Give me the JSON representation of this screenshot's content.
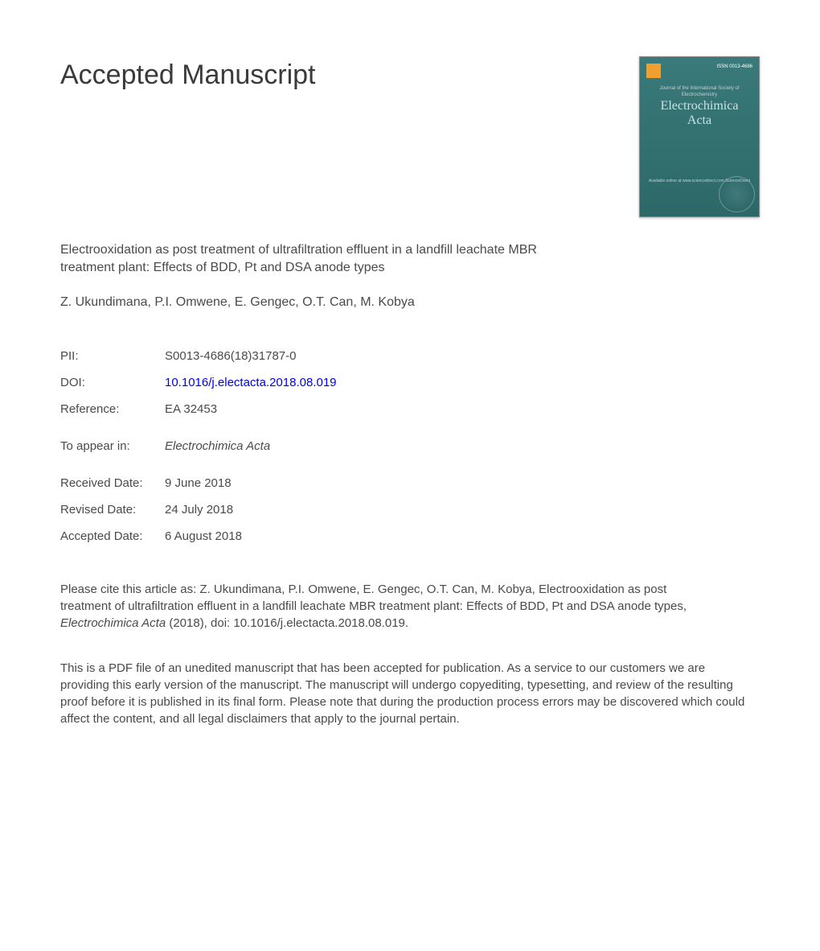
{
  "header": {
    "heading": "Accepted Manuscript"
  },
  "cover": {
    "top_corner": "ISSN 0013-4686",
    "subtitle": "Journal of the International Society of Electrochemistry",
    "journal_name_1": "Electrochimica",
    "journal_name_2": "Acta",
    "bottom_text": "Available online at www.sciencedirect.com\nScienceDirect"
  },
  "article": {
    "title": "Electrooxidation as post treatment of ultrafiltration effluent in a landfill leachate MBR treatment plant: Effects of BDD, Pt and DSA anode types",
    "authors": "Z. Ukundimana, P.I. Omwene, E. Gengec, O.T. Can, M. Kobya"
  },
  "meta": {
    "pii_label": "PII:",
    "pii_value": "S0013-4686(18)31787-0",
    "doi_label": "DOI:",
    "doi_value": "10.1016/j.electacta.2018.08.019",
    "ref_label": "Reference:",
    "ref_value": "EA 32453"
  },
  "appear": {
    "label": "To appear in:",
    "value": "Electrochimica Acta"
  },
  "dates": {
    "received_label": "Received Date:",
    "received_value": "9 June 2018",
    "revised_label": "Revised Date:",
    "revised_value": "24 July 2018",
    "accepted_label": "Accepted Date:",
    "accepted_value": "6 August 2018"
  },
  "citation": {
    "prefix": "Please cite this article as: Z. Ukundimana, P.I. Omwene, E. Gengec, O.T. Can, M. Kobya, Electrooxidation as post treatment of ultrafiltration effluent in a landfill leachate MBR treatment plant: Effects of BDD, Pt and DSA anode types, ",
    "journal": "Electrochimica Acta",
    "suffix": " (2018), doi: 10.1016/j.electacta.2018.08.019."
  },
  "disclaimer": {
    "text": "This is a PDF file of an unedited manuscript that has been accepted for publication. As a service to our customers we are providing this early version of the manuscript. The manuscript will undergo copyediting, typesetting, and review of the resulting proof before it is published in its final form. Please note that during the production process errors may be discovered which could affect the content, and all legal disclaimers that apply to the journal pertain."
  }
}
